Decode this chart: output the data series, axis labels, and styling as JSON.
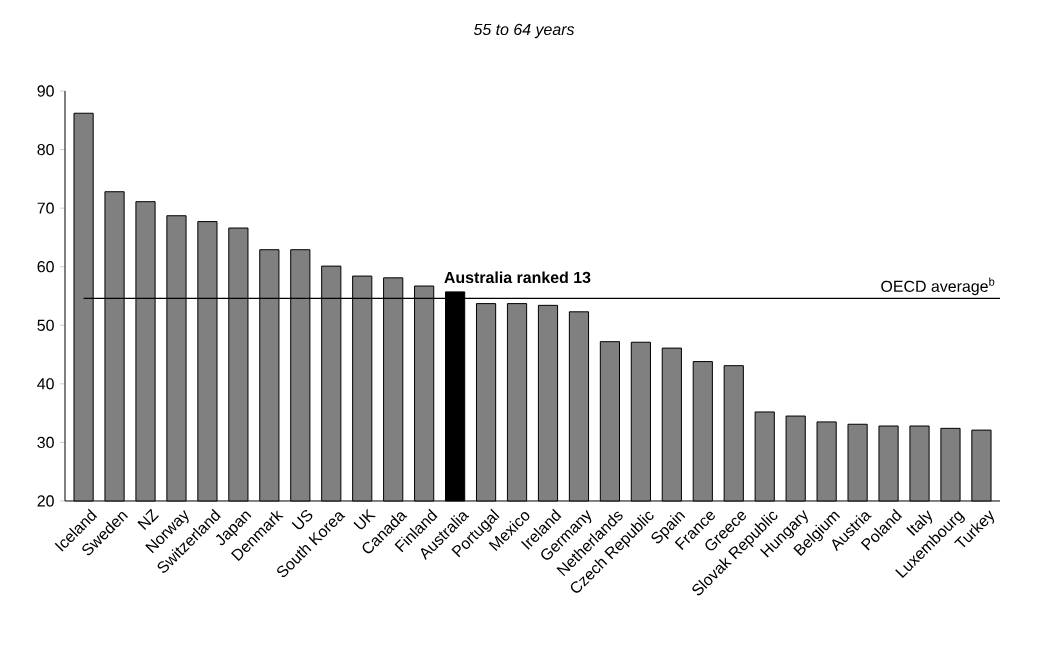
{
  "chart_data": {
    "type": "bar",
    "title": "*55 to 64 years*",
    "categories": [
      "Iceland",
      "Sweden",
      "NZ",
      "Norway",
      "Switzerland",
      "Japan",
      "Denmark",
      "US",
      "South Korea",
      "UK",
      "Canada",
      "Finland",
      "Australia",
      "Portugal",
      "Mexico",
      "Ireland",
      "Germany",
      "Netherlands",
      "Czech Republic",
      "Spain",
      "France",
      "Greece",
      "Slovak Republic",
      "Hungary",
      "Belgium",
      "Austria",
      "Poland",
      "Italy",
      "Luxembourg",
      "Turkey"
    ],
    "values": [
      86.2,
      72.8,
      71.1,
      68.7,
      67.7,
      66.6,
      62.9,
      62.9,
      60.1,
      58.4,
      58.1,
      56.7,
      55.7,
      53.7,
      53.7,
      53.4,
      52.3,
      47.2,
      47.1,
      46.1,
      43.8,
      43.1,
      35.2,
      34.5,
      33.5,
      33.1,
      32.8,
      32.8,
      32.4,
      32.1
    ],
    "colors": [
      "#808080",
      "#808080",
      "#808080",
      "#808080",
      "#808080",
      "#808080",
      "#808080",
      "#808080",
      "#808080",
      "#808080",
      "#808080",
      "#808080",
      "#000000",
      "#808080",
      "#808080",
      "#808080",
      "#808080",
      "#808080",
      "#808080",
      "#808080",
      "#808080",
      "#808080",
      "#808080",
      "#808080",
      "#808080",
      "#808080",
      "#808080",
      "#808080",
      "#808080",
      "#808080"
    ],
    "ylim": [
      20,
      90
    ],
    "yticks": [
      20,
      30,
      40,
      50,
      60,
      70,
      80,
      90
    ],
    "ref_lines": [
      {
        "axis": "y",
        "value": 54.6,
        "label": "OECD average$^{b}$",
        "color": "#000000"
      }
    ],
    "annotations": [
      "**Australia ranked 13**"
    ],
    "grid": false
  }
}
